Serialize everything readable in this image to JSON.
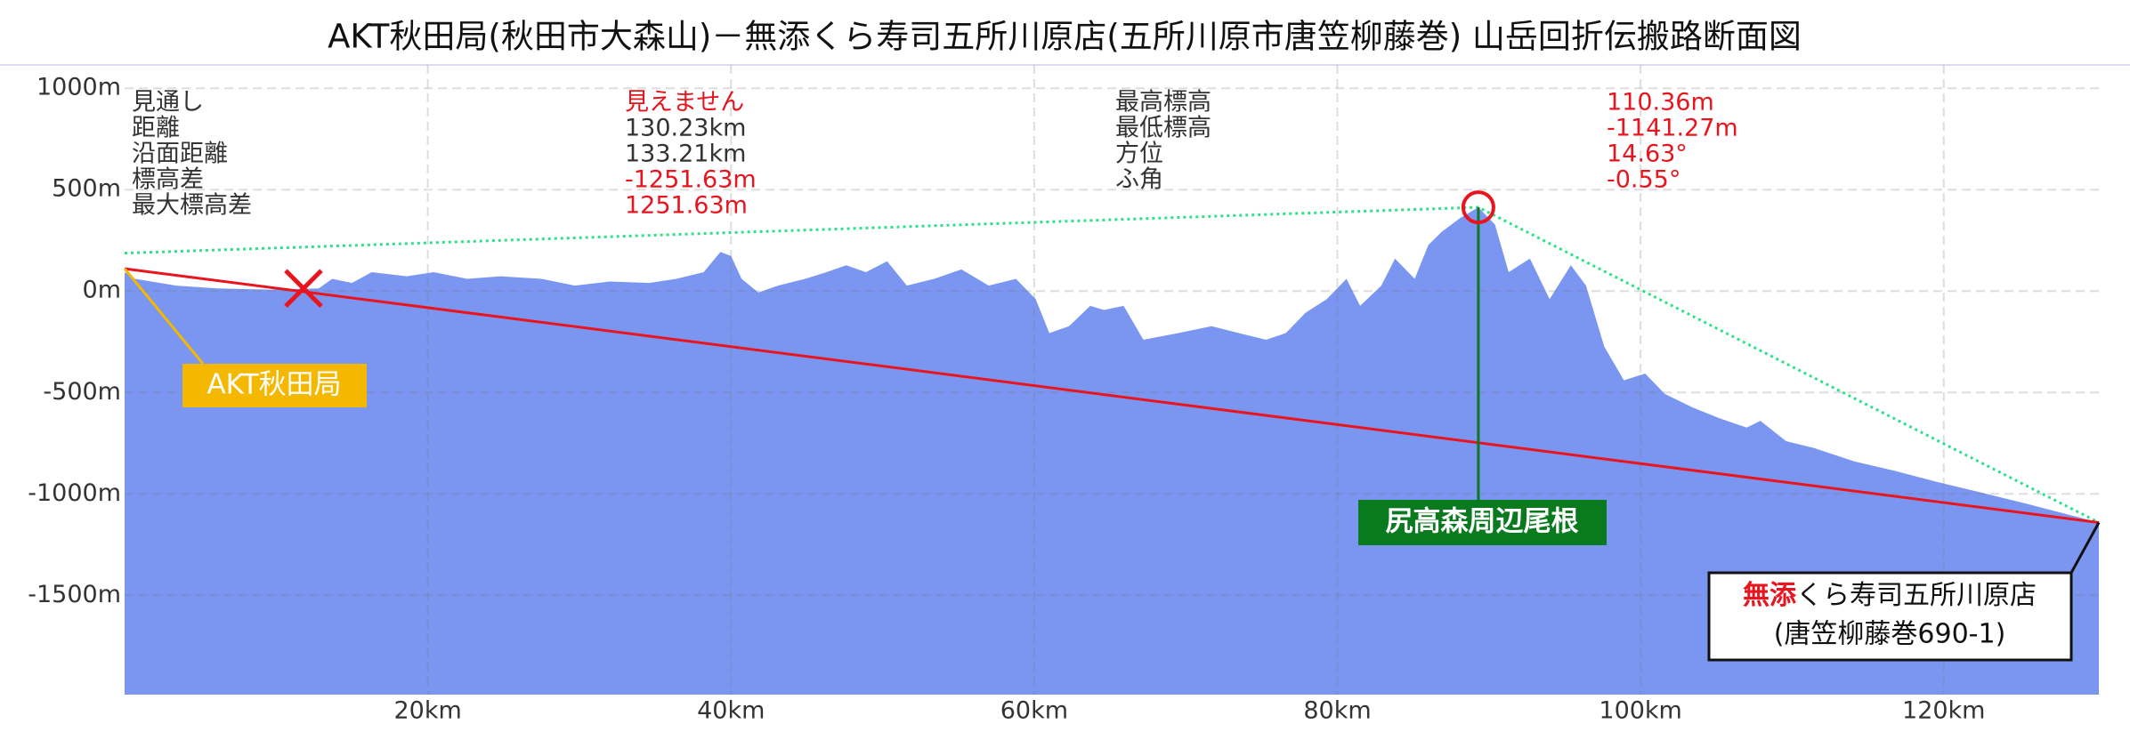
{
  "chart_data": {
    "type": "profile",
    "title": "AKT秋田局(秋田市大森山)－無添くら寿司五所川原店(五所川原市唐笠柳藤巻)  山岳回折伝搬路断面図",
    "xlim": [
      0,
      130.23
    ],
    "ylim": [
      -1990,
      1115
    ],
    "xticks": [
      {
        "value": 20,
        "label": "20km"
      },
      {
        "value": 40,
        "label": "40km"
      },
      {
        "value": 60,
        "label": "60km"
      },
      {
        "value": 80,
        "label": "80km"
      },
      {
        "value": 100,
        "label": "100km"
      },
      {
        "value": 120,
        "label": "120km"
      }
    ],
    "yticks": [
      {
        "value": 1000,
        "label": "1000m"
      },
      {
        "value": 500,
        "label": "500m"
      },
      {
        "value": 0,
        "label": "0m"
      },
      {
        "value": -500,
        "label": "-500m"
      },
      {
        "value": -1000,
        "label": "-1000m"
      },
      {
        "value": -1500,
        "label": "-1500m"
      }
    ],
    "grid": true,
    "terrain": {
      "color": "#7b96f0",
      "x": [
        0,
        0.7,
        3.4,
        6.1,
        9.6,
        12.8,
        13.7,
        15.0,
        16.3,
        18.6,
        20.4,
        22.6,
        24.8,
        27.5,
        29.7,
        32.0,
        34.6,
        36.4,
        38.2,
        39.3,
        40.0,
        40.7,
        41.8,
        43.1,
        44.9,
        46.3,
        47.6,
        48.9,
        50.3,
        51.6,
        53.4,
        55.2,
        57.0,
        58.8,
        60.1,
        61.0,
        62.3,
        63.7,
        64.6,
        65.9,
        67.2,
        69.5,
        71.7,
        73.5,
        75.3,
        76.6,
        77.9,
        79.3,
        80.6,
        81.5,
        82.9,
        83.8,
        85.1,
        86.0,
        86.9,
        88.1,
        89.3,
        90.4,
        91.3,
        92.7,
        94.0,
        95.4,
        96.4,
        97.6,
        98.9,
        100.3,
        101.6,
        103.4,
        105.2,
        107.0,
        107.9,
        109.6,
        111.4,
        114.1,
        116.8,
        119.5,
        122.1,
        125.7,
        130.23
      ],
      "y": [
        93,
        60,
        27,
        13,
        7,
        13,
        60,
        40,
        93,
        73,
        93,
        60,
        73,
        60,
        27,
        47,
        40,
        60,
        93,
        193,
        173,
        60,
        -7,
        27,
        60,
        93,
        127,
        93,
        147,
        27,
        60,
        107,
        27,
        60,
        -40,
        -207,
        -173,
        -73,
        -93,
        -73,
        -240,
        -207,
        -173,
        -207,
        -240,
        -207,
        -107,
        -40,
        60,
        -73,
        27,
        160,
        60,
        227,
        293,
        360,
        413,
        327,
        93,
        160,
        -40,
        127,
        27,
        -273,
        -440,
        -407,
        -507,
        -573,
        -627,
        -673,
        -640,
        -740,
        -773,
        -840,
        -887,
        -940,
        -987,
        -1053,
        -1141.27
      ]
    },
    "sightline": {
      "color": "#e8141e",
      "x": [
        0,
        130.23
      ],
      "y": [
        110.36,
        -1141.27
      ]
    },
    "diffraction_path": {
      "color": "#2ee08a",
      "x": [
        0,
        89.3,
        130.23
      ],
      "y": [
        187,
        413,
        -1141.27
      ]
    },
    "blocked_point": {
      "color": "#e8141e",
      "x": 11.8,
      "y": 13
    },
    "transmitter": {
      "name": "AKT秋田局",
      "color": "#f5b800",
      "x": 0,
      "y": 110.36
    },
    "obstacle": {
      "name": "尻高森周辺尾根",
      "color": "#0a7a1f",
      "marker_color": "#e8141e",
      "x": 89.3,
      "y": 413
    },
    "receiver": {
      "name_red": "無添",
      "name": "くら寿司五所川原店",
      "address": "(唐笠柳藤巻690-1)",
      "x": 130.23,
      "y": -1141.27
    },
    "info": [
      {
        "label": "見通し",
        "value": "見えません",
        "color": "#e8141e"
      },
      {
        "label": "距離",
        "value": "130.23km",
        "color": "#333333"
      },
      {
        "label": "沿面距離",
        "value": "133.21km",
        "color": "#333333"
      },
      {
        "label": "標高差",
        "value": "-1251.63m",
        "color": "#e8141e"
      },
      {
        "label": "最大標高差",
        "value": "1251.63m",
        "color": "#e8141e"
      },
      {
        "label": "最高標高",
        "value": "110.36m",
        "color": "#e8141e"
      },
      {
        "label": "最低標高",
        "value": "-1141.27m",
        "color": "#e8141e"
      },
      {
        "label": "方位",
        "value": "14.63°",
        "color": "#e8141e"
      },
      {
        "label": "ふ角",
        "value": "-0.55°",
        "color": "#e8141e"
      }
    ]
  }
}
